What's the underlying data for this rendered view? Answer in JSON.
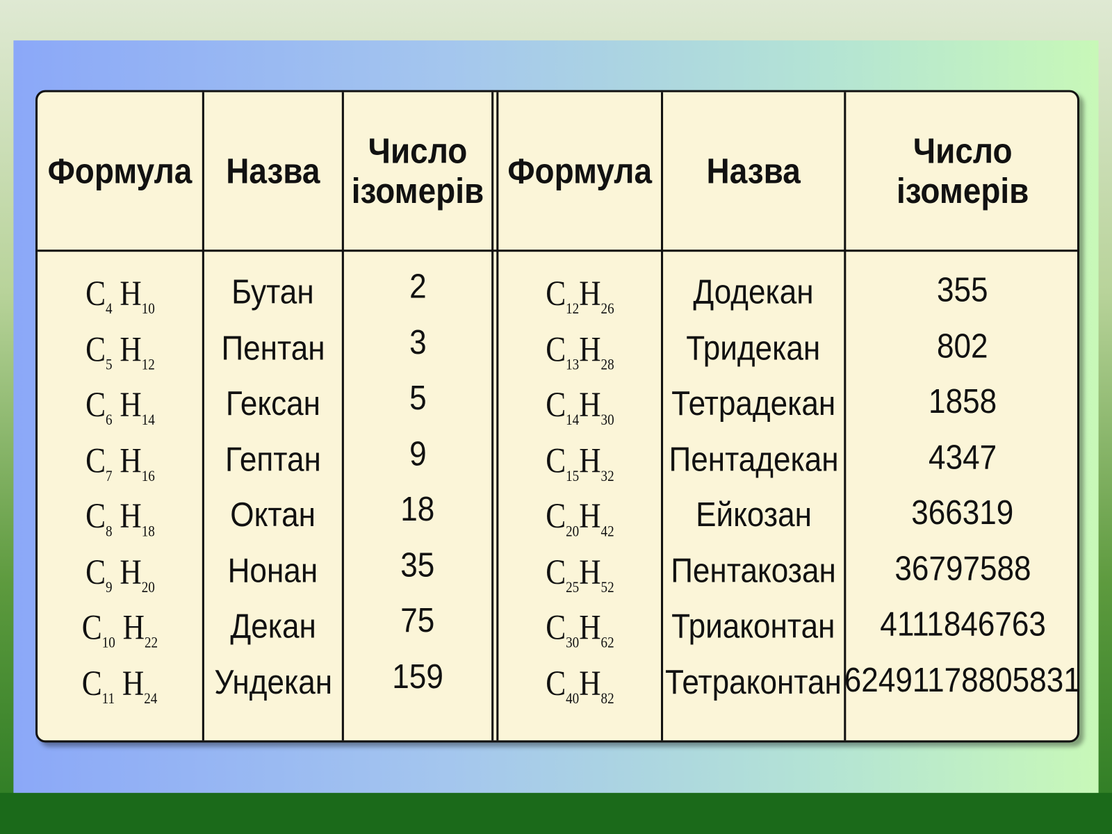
{
  "headers": {
    "formula": "Формула",
    "name": "Назва",
    "isomers_l1": "Число",
    "isomers_l2": "ізомерів"
  },
  "left_rows": [
    {
      "c": "4",
      "h": "10",
      "name": "Бутан",
      "isomers": "2"
    },
    {
      "c": "5",
      "h": "12",
      "name": "Пентан",
      "isomers": "3"
    },
    {
      "c": "6",
      "h": "14",
      "name": "Гексан",
      "isomers": "5"
    },
    {
      "c": "7",
      "h": "16",
      "name": "Гептан",
      "isomers": "9"
    },
    {
      "c": "8",
      "h": "18",
      "name": "Октан",
      "isomers": "18"
    },
    {
      "c": "9",
      "h": "20",
      "name": "Нонан",
      "isomers": "35"
    },
    {
      "c": "10",
      "h": "22",
      "name": "Декан",
      "isomers": "75"
    },
    {
      "c": "11",
      "h": "24",
      "name": "Ундекан",
      "isomers": "159"
    }
  ],
  "right_rows": [
    {
      "c": "12",
      "h": "26",
      "name": "Додекан",
      "isomers": "355"
    },
    {
      "c": "13",
      "h": "28",
      "name": "Тридекан",
      "isomers": "802"
    },
    {
      "c": "14",
      "h": "30",
      "name": "Тетрадекан",
      "isomers": "1858"
    },
    {
      "c": "15",
      "h": "32",
      "name": "Пентадекан",
      "isomers": "4347"
    },
    {
      "c": "20",
      "h": "42",
      "name": "Ейкозан",
      "isomers": "366319"
    },
    {
      "c": "25",
      "h": "52",
      "name": "Пентакозан",
      "isomers": "36797588"
    },
    {
      "c": "30",
      "h": "62",
      "name": "Триаконтан",
      "isomers": "4111846763"
    },
    {
      "c": "40",
      "h": "82",
      "name": "Тетраконтан",
      "isomers": "62491178805831"
    }
  ]
}
